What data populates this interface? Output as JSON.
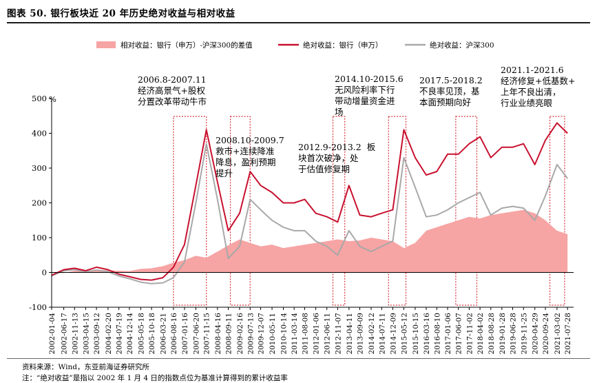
{
  "title": "图表 50. 银行板块近 20 年历史绝对收益与相对收益",
  "source": "资料来源：Wind，东亚前海证券研究所",
  "note": "注：“绝对收益”是指以 2002 年 1 月 4 日的指数点位为基准计算得到的累计收益率",
  "colors": {
    "diff": "#f7a4a4",
    "bank": "#c8102e",
    "hs300": "#a8a8a8",
    "box": "#d6303a"
  },
  "chart_data": {
    "type": "line",
    "ylim": [
      -100,
      500
    ],
    "yticks": [
      "-100",
      "0",
      "100",
      "200",
      "300",
      "400",
      "500"
    ],
    "yunit": "%",
    "grid": false,
    "legend_position": "top",
    "xtick_labels": [
      "2002-01-04",
      "2002-06-17",
      "2002-11-13",
      "2003-04-15",
      "2003-09-12",
      "2004-02-20",
      "2004-07-19",
      "2004-12-14",
      "2005-05-18",
      "2005-10-18",
      "2006-03-21",
      "2006-08-16",
      "2007-01-16",
      "2007-06-20",
      "2007-11-15",
      "2008-04-16",
      "2008-09-11",
      "2009-02-16",
      "2009-07-13",
      "2009-12-07",
      "2010-05-11",
      "2010-10-14",
      "2011-03-14",
      "2011-08-08",
      "2012-01-06",
      "2012-06-11",
      "2012-11-07",
      "2013-04-11",
      "2013-09-09",
      "2014-02-12",
      "2014-07-11",
      "2014-12-09",
      "2015-05-12",
      "2015-10-15",
      "2016-03-16",
      "2016-08-10",
      "2017-01-06",
      "2017-06-07",
      "2017-11-02",
      "2018-04-02",
      "2018-08-28",
      "2019-01-28",
      "2019-06-28",
      "2019-11-25",
      "2020-04-29",
      "2020-09-24",
      "2021-03-02",
      "2021-07-28"
    ],
    "x_years": [
      2002.0,
      2002.46,
      2002.87,
      2003.29,
      2003.7,
      2004.14,
      2004.55,
      2004.95,
      2005.38,
      2005.79,
      2006.22,
      2006.62,
      2007.04,
      2007.47,
      2007.87,
      2008.29,
      2008.7,
      2009.13,
      2009.53,
      2009.93,
      2010.36,
      2010.79,
      2011.2,
      2011.6,
      2012.02,
      2012.44,
      2012.85,
      2013.28,
      2013.69,
      2014.12,
      2014.52,
      2014.94,
      2015.36,
      2015.79,
      2016.21,
      2016.61,
      2017.02,
      2017.43,
      2017.84,
      2018.25,
      2018.66,
      2019.08,
      2019.49,
      2019.9,
      2020.33,
      2020.73,
      2021.17,
      2021.57
    ],
    "series": [
      {
        "name": "相对收益：银行（申万）-沪深300的差值",
        "type": "area",
        "values": [
          0,
          -2,
          5,
          3,
          8,
          6,
          5,
          4,
          10,
          12,
          18,
          28,
          35,
          48,
          42,
          60,
          78,
          95,
          85,
          75,
          80,
          70,
          75,
          80,
          85,
          90,
          95,
          90,
          92,
          100,
          95,
          90,
          70,
          85,
          120,
          130,
          140,
          150,
          160,
          155,
          165,
          170,
          175,
          180,
          170,
          150,
          120,
          110
        ]
      },
      {
        "name": "绝对收益：银行（申万）",
        "type": "line",
        "values": [
          -8,
          8,
          12,
          5,
          15,
          8,
          -5,
          -12,
          -20,
          -22,
          -15,
          15,
          80,
          250,
          410,
          260,
          120,
          170,
          290,
          250,
          230,
          200,
          200,
          210,
          170,
          160,
          145,
          250,
          165,
          160,
          170,
          180,
          410,
          330,
          280,
          290,
          340,
          340,
          370,
          390,
          330,
          360,
          360,
          370,
          310,
          380,
          430,
          400
        ]
      },
      {
        "name": "绝对收益：沪深300",
        "type": "line",
        "values": [
          -10,
          5,
          8,
          2,
          7,
          2,
          -10,
          -18,
          -28,
          -32,
          -30,
          -15,
          30,
          200,
          370,
          210,
          40,
          75,
          210,
          180,
          150,
          130,
          120,
          120,
          90,
          75,
          50,
          120,
          75,
          60,
          75,
          90,
          330,
          245,
          160,
          165,
          180,
          200,
          215,
          230,
          165,
          185,
          190,
          185,
          150,
          220,
          310,
          270
        ]
      }
    ],
    "annotations": [
      {
        "lines": [
          "2006.8-2007.11",
          "经济高景气+股权",
          "分置改革带动牛市"
        ],
        "x_range": [
          2006.62,
          2007.87
        ]
      },
      {
        "lines": [
          "2008.10-2009.7",
          "救市+连续降准",
          "降息，盈利预期",
          "提升"
        ],
        "x_range": [
          2008.78,
          2009.53
        ]
      },
      {
        "lines": [
          "2012.9-2013.2",
          "板",
          "块首次破净，处",
          "于估值修复期"
        ],
        "x_range": [
          2012.67,
          2013.12
        ]
      },
      {
        "lines": [
          "2014.10-2015.6",
          "无风险利率下行",
          "带动增量资金进",
          "场"
        ],
        "x_range": [
          2014.78,
          2015.44
        ]
      },
      {
        "lines": [
          "2017.5-2018.2",
          "不良率见顶，基",
          "本面预期向好"
        ],
        "x_range": [
          2017.33,
          2018.13
        ]
      },
      {
        "lines": [
          "2021.1-2021.6",
          "经济修复+低基数+",
          "上年不良出清，",
          "行业业绩亮眼"
        ],
        "x_range": [
          2020.9,
          2021.46
        ]
      }
    ]
  }
}
